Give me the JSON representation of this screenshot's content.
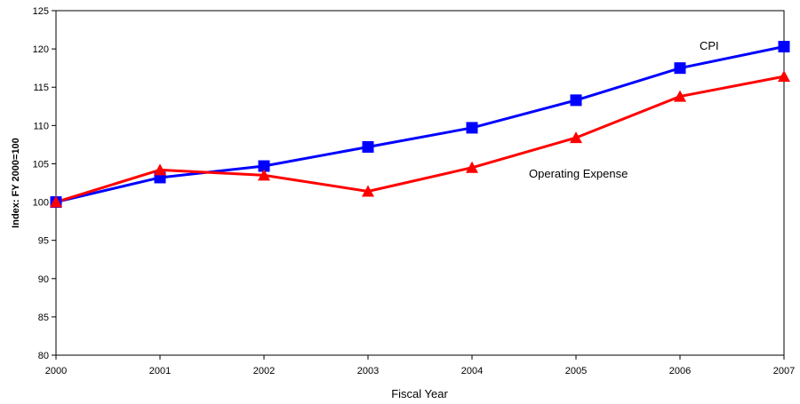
{
  "chart_data": {
    "type": "line",
    "title": "",
    "xlabel": "Fiscal Year",
    "ylabel": "Index:  FY 2000=100",
    "categories": [
      "2000",
      "2001",
      "2002",
      "2003",
      "2004",
      "2005",
      "2006",
      "2007"
    ],
    "ylim": [
      80,
      125
    ],
    "yticks": [
      80,
      85,
      90,
      95,
      100,
      105,
      110,
      115,
      120,
      125
    ],
    "grid": false,
    "legend": "none",
    "series": [
      {
        "name": "CPI",
        "color": "#0000ff",
        "marker": "square",
        "values": [
          100.0,
          103.2,
          104.7,
          107.2,
          109.7,
          113.3,
          117.5,
          120.3
        ]
      },
      {
        "name": "Operating Expense",
        "color": "#ff0000",
        "marker": "triangle",
        "values": [
          100.0,
          104.2,
          103.5,
          101.4,
          104.5,
          108.4,
          113.8,
          116.4
        ]
      }
    ]
  }
}
